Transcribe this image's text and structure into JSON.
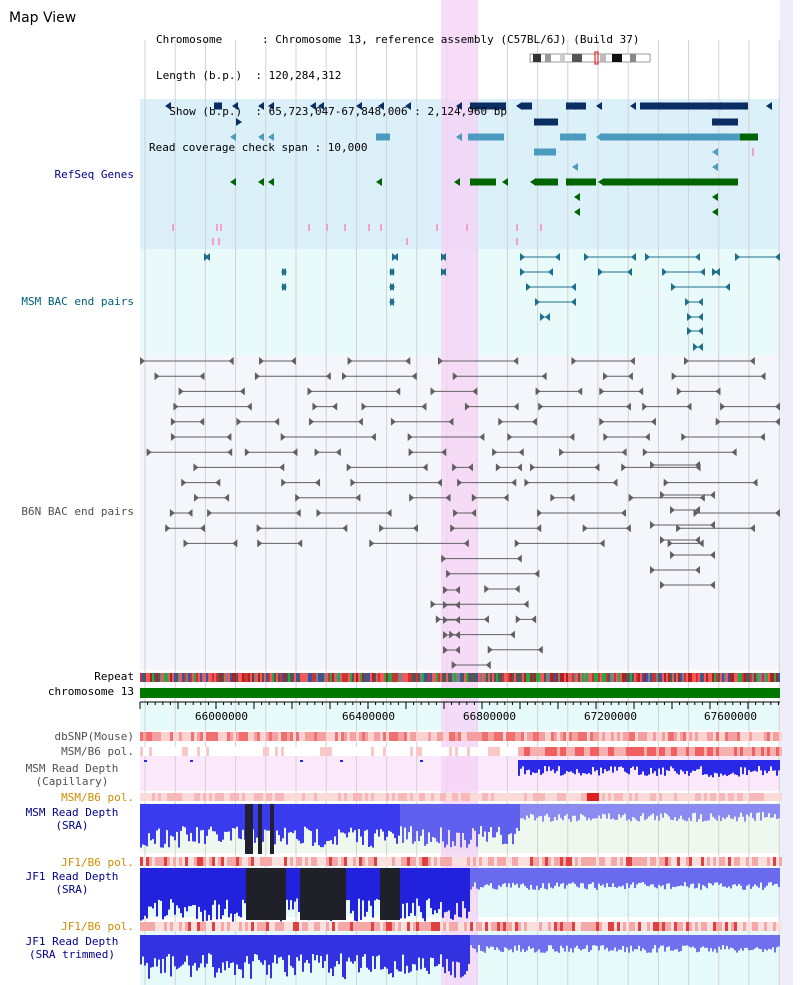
{
  "view": {
    "title": "Map View"
  },
  "header": {
    "chromosome": "Chromosome      : Chromosome 13, reference assembly (C57BL/6J) (Build 37)",
    "length": "Length (b.p.)  : 120,284,312",
    "show": "  Show (b.p.)  : 65,723,047-67,848,006 : 2,124,960 bp",
    "coverage": "Read coverage check span : 10,000"
  },
  "tracks": {
    "refseq": "RefSeq Genes",
    "msm_bac": "MSM BAC end pairs",
    "b6n_bac": "B6N BAC end pairs",
    "repeat": "Repeat",
    "chromosome": "chromosome 13",
    "dbsnp": "dbSNP(Mouse)",
    "msm_b6_pol_1": "MSM/B6 pol.",
    "msm_depth_cap_1": "MSM Read Depth",
    "msm_depth_cap_2": "(Capillary)",
    "msm_b6_pol_2": "MSM/B6 pol.",
    "msm_depth_sra_1": "MSM Read Depth",
    "msm_depth_sra_2": "(SRA)",
    "jf1_b6_pol_1": "JF1/B6 pol.",
    "jf1_depth_sra_1": "JF1 Read Depth",
    "jf1_depth_sra_2": "(SRA)",
    "jf1_b6_pol_2": "JF1/B6 pol.",
    "jf1_depth_trim_1": "JF1 Read Depth",
    "jf1_depth_trim_2": "(SRA trimmed)"
  },
  "axis": {
    "ticks": [
      "66000000",
      "66400000",
      "66800000",
      "67200000",
      "67600000"
    ]
  },
  "colors": {
    "refseq_bg": "#dcf0fa",
    "msm_bac_bg": "#e8fafa",
    "b6n_bg": "#f5f5fc",
    "highlight": "#f5d2f5",
    "gene_dark": "#0a2d64",
    "gene_mid": "#4b9bbe",
    "gene_green": "#006400",
    "chromosome_bar": "#007800",
    "depth_blue": "#2828e6"
  }
}
